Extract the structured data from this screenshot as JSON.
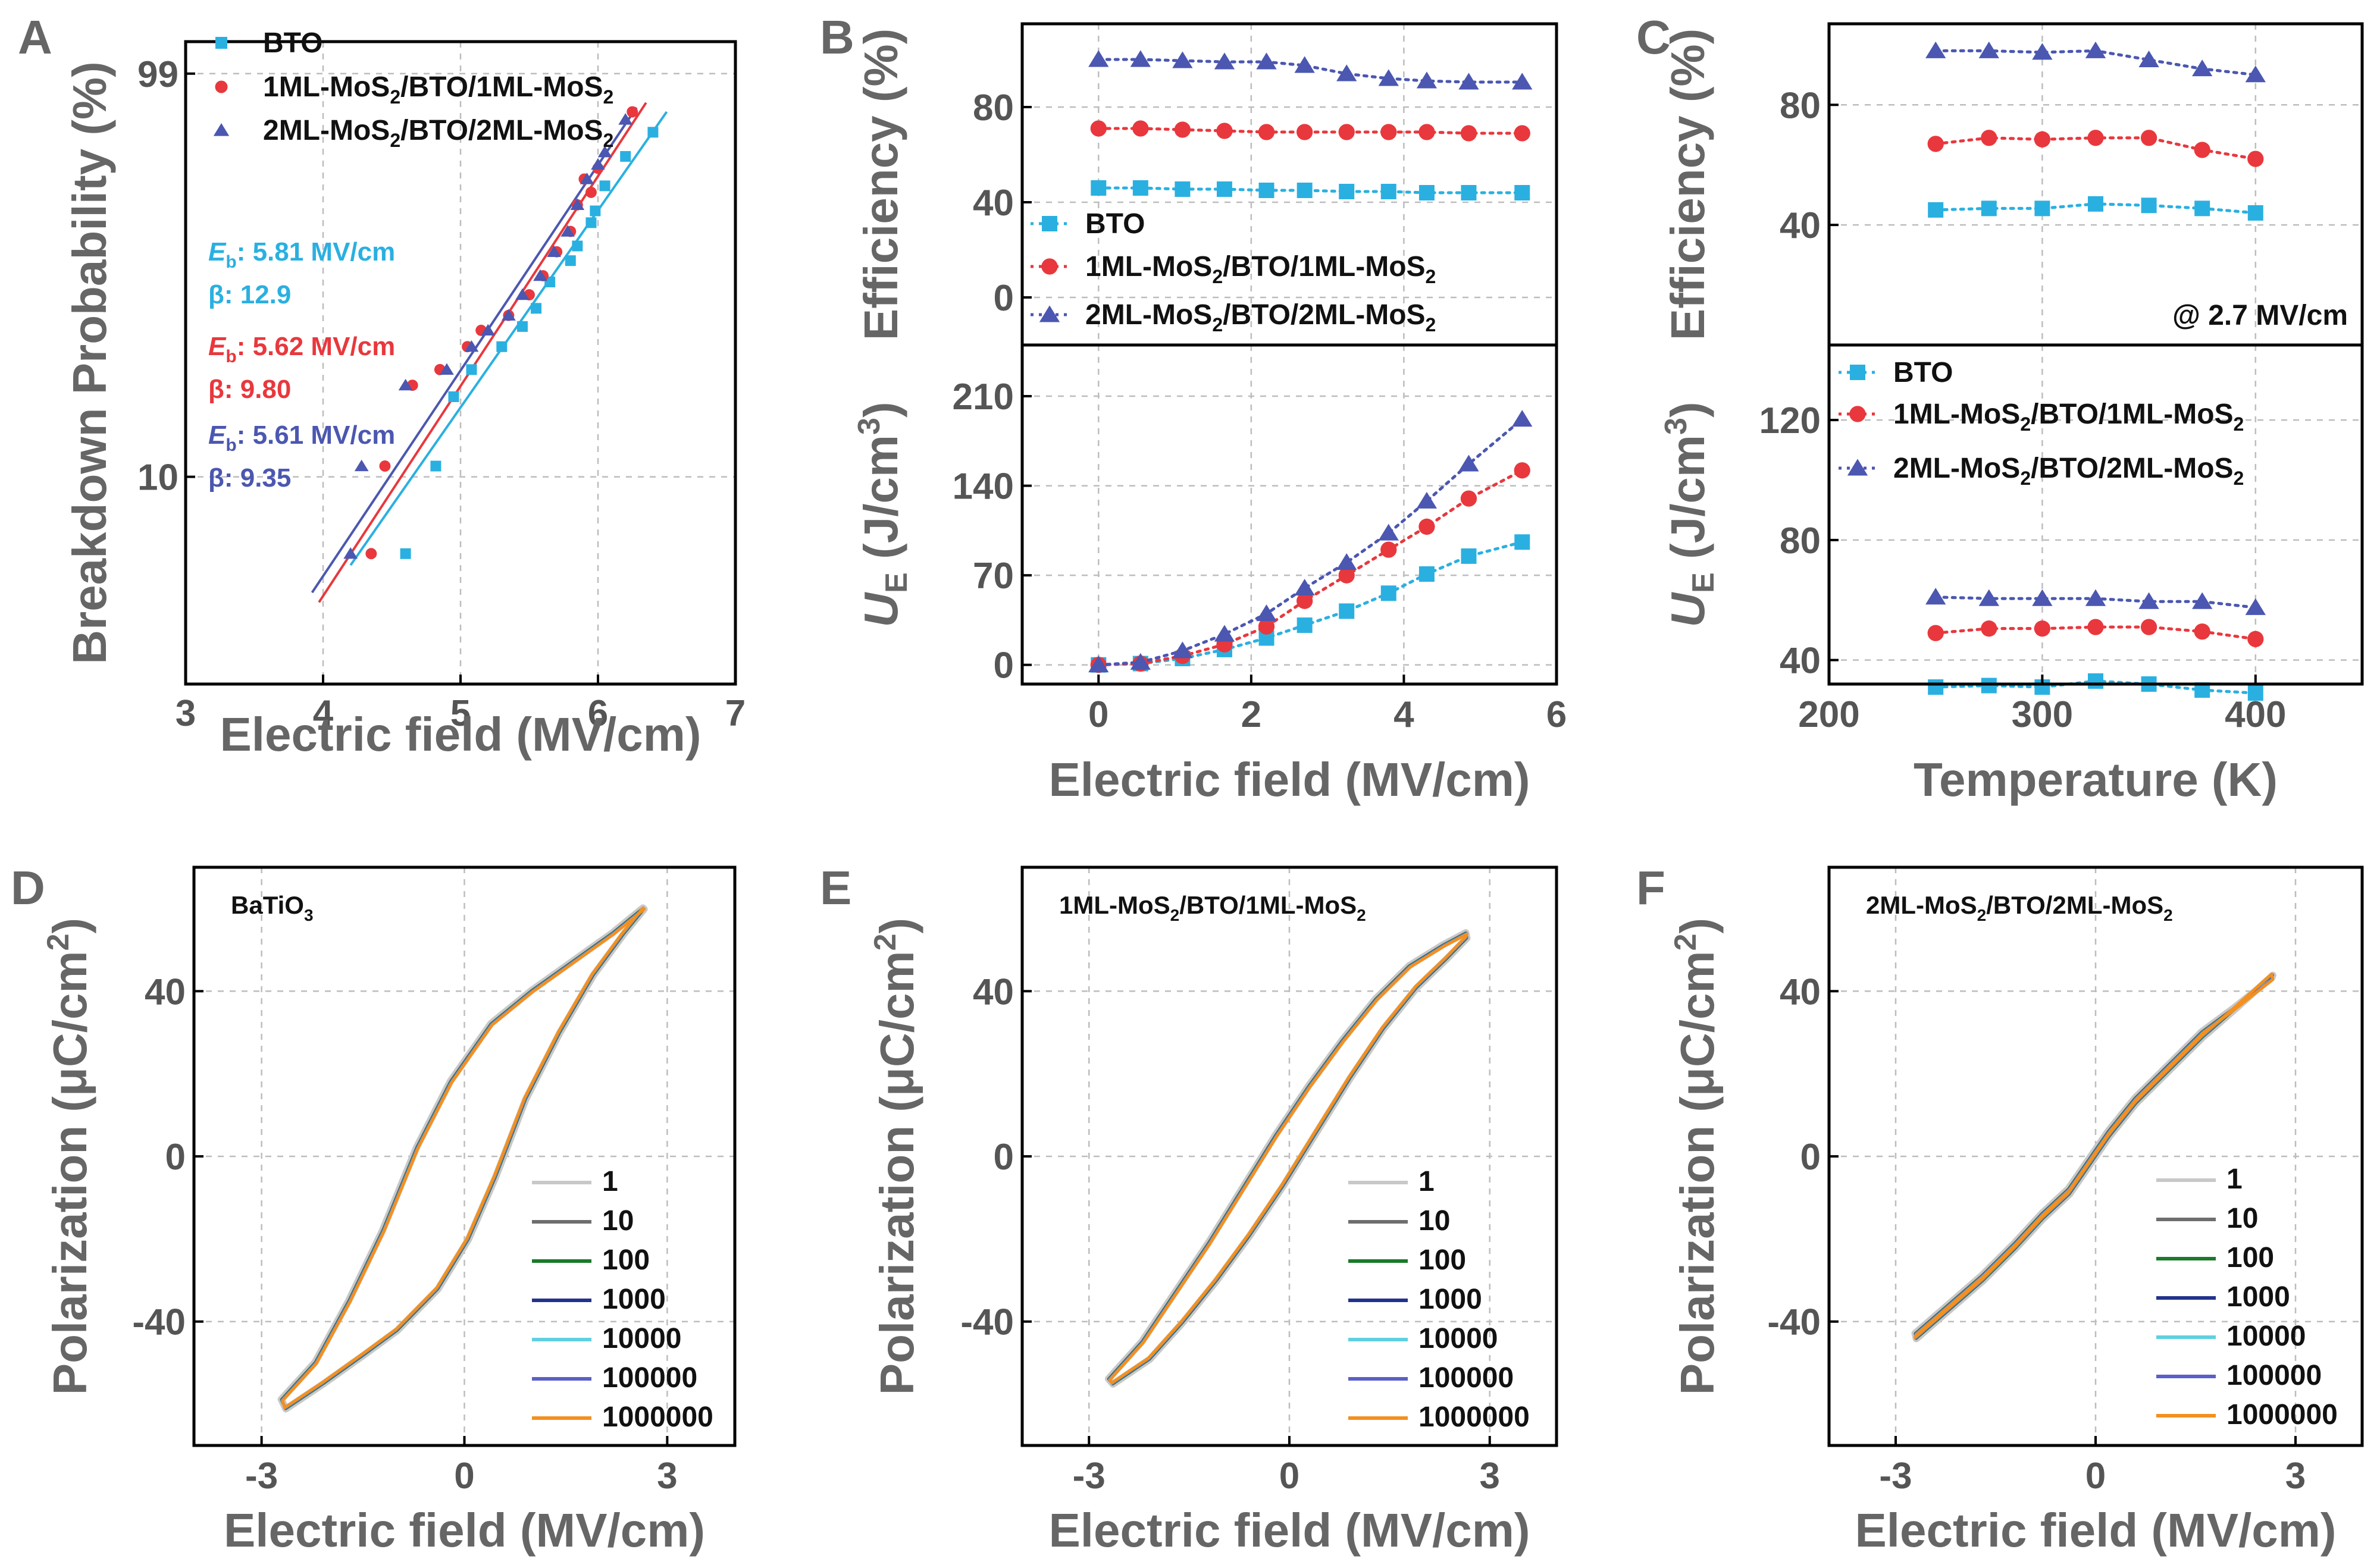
{
  "colors": {
    "bto": "#2ab0e0",
    "ml1": "#e8383d",
    "ml2": "#4b57b0",
    "c1": "#c8c8c8",
    "c10": "#6e6e6e",
    "c100": "#1a7a2a",
    "c1000": "#22338c",
    "c10000": "#5fd0e0",
    "c100000": "#5b5fc9",
    "c1000000": "#f39020"
  },
  "chart_data": [
    {
      "id": "A",
      "type": "scatter",
      "letter": "A",
      "xlabel": "Electric field (MV/cm)",
      "ylabel": "Breakdown Probability (%)",
      "xlim": [
        3,
        7
      ],
      "xticks": [
        "3",
        "4",
        "5",
        "6",
        "7"
      ],
      "yticks": [
        "10",
        "99"
      ],
      "series": [
        {
          "name": "BTO",
          "color": "#2ab0e0",
          "marker": "square",
          "x": [
            4.6,
            4.82,
            4.95,
            5.08,
            5.3,
            5.45,
            5.55,
            5.65,
            5.8,
            5.85,
            5.95,
            5.98,
            6.05,
            6.2,
            6.4
          ],
          "y": [
            5,
            11,
            20,
            25,
            30,
            35,
            40,
            48,
            55,
            60,
            68,
            72,
            80,
            88,
            93
          ],
          "fit": [
            [
              4.2,
              4.5
            ],
            [
              6.5,
              96
            ]
          ]
        },
        {
          "name": "1ML-MoS2/BTO/1ML-MoS2",
          "color": "#e8383d",
          "marker": "circle",
          "x": [
            4.35,
            4.45,
            4.65,
            4.85,
            5.05,
            5.15,
            5.35,
            5.5,
            5.6,
            5.7,
            5.8,
            5.85,
            5.9,
            5.95,
            6.0,
            6.25
          ],
          "y": [
            5,
            11,
            22,
            25,
            30,
            34,
            38,
            44,
            50,
            58,
            65,
            74,
            82,
            78,
            85,
            96
          ],
          "fit": [
            [
              3.97,
              3.2
            ],
            [
              6.35,
              97
            ]
          ]
        },
        {
          "name": "2ML-MoS2/BTO/2ML-MoS2",
          "color": "#4b57b0",
          "marker": "triangle",
          "x": [
            4.2,
            4.28,
            4.6,
            4.9,
            5.08,
            5.2,
            5.35,
            5.45,
            5.58,
            5.68,
            5.78,
            5.85,
            5.92,
            6.0,
            6.05,
            6.2
          ],
          "y": [
            5,
            11,
            22,
            25,
            30,
            34,
            38,
            44,
            50,
            58,
            65,
            74,
            82,
            86,
            89,
            95
          ],
          "fit": [
            [
              3.92,
              3.5
            ],
            [
              6.28,
              96.5
            ]
          ]
        }
      ],
      "annotations": [
        {
          "lines": [
            "E",
            "b",
            ": 5.81 MV/cm"
          ],
          "beta": "β: 12.9",
          "color": "#2ab0e0"
        },
        {
          "lines": [
            "E",
            "b",
            ": 5.62 MV/cm"
          ],
          "beta": "β: 9.80",
          "color": "#e8383d"
        },
        {
          "lines": [
            "E",
            "b",
            ": 5.61 MV/cm"
          ],
          "beta": "β: 9.35",
          "color": "#4b57b0"
        }
      ]
    },
    {
      "id": "B",
      "type": "line",
      "letter": "B",
      "xlabel": "Electric field (MV/cm)",
      "xlim": [
        -1,
        6
      ],
      "xticks": [
        0,
        2,
        4,
        6
      ],
      "top": {
        "ylabel": "Efficiency (%)",
        "ylim": [
          -20,
          115
        ],
        "yticks": [
          0,
          40,
          80
        ]
      },
      "bottom": {
        "ylabel": "U",
        "ylabel_sub": "E",
        "ylabel_unit": " (J/cm",
        "ylabel_sup": "3",
        "ylabel_close": ")",
        "ylim": [
          -15,
          250
        ],
        "yticks": [
          0,
          70,
          140,
          210
        ]
      },
      "x": [
        0,
        0.55,
        1.1,
        1.65,
        2.2,
        2.7,
        3.25,
        3.8,
        4.3,
        4.85,
        5.55
      ],
      "series": [
        {
          "name": "BTO",
          "color": "#2ab0e0",
          "marker": "square",
          "efficiency": [
            46,
            46,
            45.5,
            45.5,
            45,
            45,
            44.5,
            44.5,
            44,
            44,
            44
          ],
          "energy": [
            0,
            1,
            5,
            12,
            21,
            31,
            42,
            56,
            71,
            85,
            96
          ]
        },
        {
          "name": "1ML-MoS2/BTO/1ML-MoS2",
          "color": "#e8383d",
          "marker": "circle",
          "efficiency": [
            71,
            71,
            70.5,
            70,
            69.5,
            69.5,
            69.5,
            69.5,
            69.5,
            69,
            69
          ],
          "energy": [
            0,
            1,
            7,
            16,
            30,
            50,
            70,
            90,
            108,
            130,
            152
          ]
        },
        {
          "name": "2ML-MoS2/BTO/2ML-MoS2",
          "color": "#4b57b0",
          "marker": "triangle",
          "efficiency": [
            100,
            100,
            99.5,
            99,
            99,
            97.5,
            94,
            92,
            91,
            90.5,
            90.5
          ],
          "energy": [
            0,
            2,
            11,
            24,
            40,
            60,
            80,
            103,
            128,
            157,
            192
          ]
        }
      ]
    },
    {
      "id": "C",
      "type": "line",
      "letter": "C",
      "xlabel": "Temperature (K)",
      "xlim": [
        200,
        450
      ],
      "xticks": [
        200,
        300,
        400
      ],
      "note": "@ 2.7 MV/cm",
      "top": {
        "ylabel": "Efficiency (%)",
        "ylim": [
          0,
          107
        ],
        "yticks": [
          40,
          80
        ]
      },
      "bottom": {
        "ylabel": "U",
        "ylabel_sub": "E",
        "ylabel_unit": " (J/cm",
        "ylabel_sup": "3",
        "ylabel_close": ")",
        "ylim": [
          32,
          145
        ],
        "yticks": [
          40,
          80,
          120
        ]
      },
      "x": [
        250,
        275,
        300,
        325,
        350,
        375,
        400
      ],
      "series": [
        {
          "name": "BTO",
          "color": "#2ab0e0",
          "marker": "square",
          "efficiency": [
            45,
            45.5,
            45.5,
            47,
            46.5,
            45.5,
            44
          ],
          "energy": [
            31,
            31.5,
            31,
            33,
            32,
            30,
            29
          ]
        },
        {
          "name": "1ML-MoS2/BTO/1ML-MoS2",
          "color": "#e8383d",
          "marker": "circle",
          "efficiency": [
            67,
            69,
            68.5,
            69,
            69,
            65,
            62
          ],
          "energy": [
            49,
            50.5,
            50.5,
            51,
            51,
            49.5,
            47
          ]
        },
        {
          "name": "2ML-MoS2/BTO/2ML-MoS2",
          "color": "#4b57b0",
          "marker": "triangle",
          "efficiency": [
            98,
            98,
            97.5,
            98,
            95,
            92,
            90
          ],
          "energy": [
            61,
            60.5,
            60.5,
            60.5,
            59.5,
            59.5,
            57.5
          ]
        }
      ]
    },
    {
      "id": "D",
      "type": "line",
      "letter": "D",
      "title_main": "BaTiO",
      "title_sub": "3",
      "title_rest": "",
      "xlabel": "Electric field (MV/cm)",
      "ylabel": "Polarization (μC/cm",
      "ylabel_sup": "2",
      "ylabel_close": ")",
      "xlim": [
        -4,
        4
      ],
      "ylim": [
        -70,
        70
      ],
      "xticks": [
        -3,
        0,
        3
      ],
      "yticks": [
        -40,
        0,
        40
      ],
      "cycles": [
        "1",
        "10",
        "100",
        "1000",
        "10000",
        "100000",
        "1000000"
      ],
      "branches": {
        "upper": [
          [
            -2.7,
            -59
          ],
          [
            -2.2,
            -50
          ],
          [
            -1.7,
            -35
          ],
          [
            -1.2,
            -18
          ],
          [
            -0.7,
            2
          ],
          [
            -0.2,
            18
          ],
          [
            0.4,
            32
          ],
          [
            1.0,
            40
          ],
          [
            1.6,
            47
          ],
          [
            2.2,
            54
          ],
          [
            2.65,
            60
          ]
        ],
        "lower": [
          [
            -2.65,
            -61
          ],
          [
            -2.1,
            -55
          ],
          [
            -1.5,
            -48
          ],
          [
            -1.0,
            -42
          ],
          [
            -0.4,
            -32
          ],
          [
            0.05,
            -20
          ],
          [
            0.45,
            -5
          ],
          [
            0.9,
            14
          ],
          [
            1.4,
            30
          ],
          [
            1.9,
            44
          ],
          [
            2.35,
            54
          ],
          [
            2.65,
            60
          ]
        ]
      }
    },
    {
      "id": "E",
      "type": "line",
      "letter": "E",
      "title_main": "1ML-MoS",
      "title_sub": "2",
      "title_rest": "/BTO/1ML-MoS",
      "title_sub2": "2",
      "xlabel": "Electric field (MV/cm)",
      "ylabel": "Polarization (μC/cm",
      "ylabel_sup": "2",
      "ylabel_close": ")",
      "xlim": [
        -4,
        4
      ],
      "ylim": [
        -70,
        70
      ],
      "xticks": [
        -3,
        0,
        3
      ],
      "yticks": [
        -40,
        0,
        40
      ],
      "cycles": [
        "1",
        "10",
        "100",
        "1000",
        "10000",
        "100000",
        "1000000"
      ],
      "branches": {
        "upper": [
          [
            -2.7,
            -54
          ],
          [
            -2.2,
            -45
          ],
          [
            -1.7,
            -33
          ],
          [
            -1.2,
            -21
          ],
          [
            -0.7,
            -8
          ],
          [
            -0.2,
            5
          ],
          [
            0.3,
            17
          ],
          [
            0.8,
            28
          ],
          [
            1.3,
            38
          ],
          [
            1.8,
            46
          ],
          [
            2.3,
            51
          ],
          [
            2.65,
            54
          ]
        ],
        "lower": [
          [
            -2.65,
            -55
          ],
          [
            -2.1,
            -49
          ],
          [
            -1.6,
            -40
          ],
          [
            -1.1,
            -30
          ],
          [
            -0.6,
            -19
          ],
          [
            -0.1,
            -7
          ],
          [
            0.4,
            6
          ],
          [
            0.9,
            19
          ],
          [
            1.4,
            31
          ],
          [
            1.9,
            41
          ],
          [
            2.35,
            48
          ],
          [
            2.65,
            53
          ]
        ]
      }
    },
    {
      "id": "F",
      "type": "line",
      "letter": "F",
      "title_main": "2ML-MoS",
      "title_sub": "2",
      "title_rest": "/BTO/2ML-MoS",
      "title_sub2": "2",
      "xlabel": "Electric field (MV/cm)",
      "ylabel": "Polarization (μC/cm",
      "ylabel_sup": "2",
      "ylabel_close": ")",
      "xlim": [
        -4,
        4
      ],
      "ylim": [
        -70,
        70
      ],
      "xticks": [
        -3,
        0,
        3
      ],
      "yticks": [
        -40,
        0,
        40
      ],
      "cycles": [
        "1",
        "10",
        "100",
        "1000",
        "10000",
        "100000",
        "1000000"
      ],
      "branches": {
        "upper": [
          [
            -2.7,
            -43
          ],
          [
            -2.2,
            -36
          ],
          [
            -1.7,
            -29
          ],
          [
            -1.2,
            -21
          ],
          [
            -0.8,
            -14
          ],
          [
            -0.4,
            -8
          ],
          [
            -0.1,
            -1
          ],
          [
            0.2,
            6
          ],
          [
            0.6,
            14
          ],
          [
            1.1,
            22
          ],
          [
            1.6,
            30
          ],
          [
            2.1,
            36
          ],
          [
            2.65,
            43
          ]
        ],
        "lower": [
          [
            -2.7,
            -44
          ],
          [
            -2.2,
            -37
          ],
          [
            -1.7,
            -30
          ],
          [
            -1.2,
            -22
          ],
          [
            -0.8,
            -15
          ],
          [
            -0.4,
            -9
          ],
          [
            -0.1,
            -2
          ],
          [
            0.2,
            5
          ],
          [
            0.6,
            13
          ],
          [
            1.1,
            21
          ],
          [
            1.6,
            29
          ],
          [
            2.1,
            36
          ],
          [
            2.65,
            44
          ]
        ]
      }
    }
  ]
}
